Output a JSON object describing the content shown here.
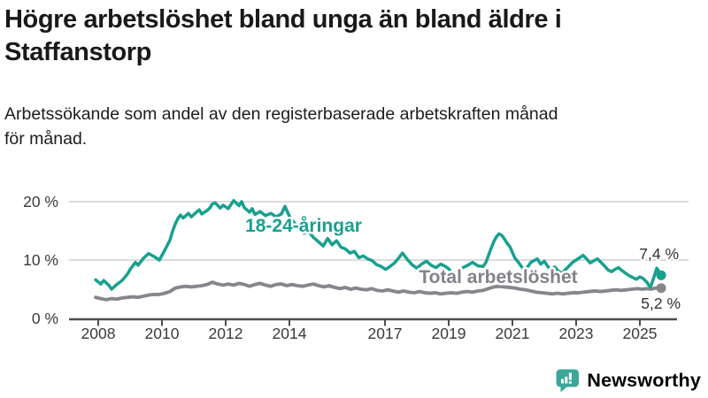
{
  "header": {
    "title": {
      "line1": "Högre arbetslöshet bland unga än bland äldre i",
      "line2": "Staffanstorp"
    },
    "subtitle": {
      "line1": "Arbetssökande som andel av den registerbaserade arbetskraften månad",
      "line2": "för månad."
    }
  },
  "chart_data": {
    "type": "line",
    "title": "Högre arbetslöshet bland unga än bland äldre i Staffanstorp",
    "subtitle": "Arbetssökande som andel av den registerbaserade arbetskraften månad för månad.",
    "grid": "horizontal",
    "legend_position": "inline-labels",
    "xlim": [
      2007.9,
      2025.9
    ],
    "ylim": [
      0,
      21
    ],
    "y_ticks": [
      {
        "value": 0,
        "label": "0 %"
      },
      {
        "value": 10,
        "label": "10 %"
      },
      {
        "value": 20,
        "label": "20 %"
      }
    ],
    "x_ticks": [
      {
        "value": 2008,
        "label": "2008"
      },
      {
        "value": 2010,
        "label": "2010"
      },
      {
        "value": 2012,
        "label": "2012"
      },
      {
        "value": 2014,
        "label": "2014"
      },
      {
        "value": 2017,
        "label": "2017"
      },
      {
        "value": 2019,
        "label": "2019"
      },
      {
        "value": 2021,
        "label": "2021"
      },
      {
        "value": 2023,
        "label": "2023"
      },
      {
        "value": 2025,
        "label": "2025"
      }
    ],
    "series": [
      {
        "name": "Total arbetslöshet",
        "color": "#87868c",
        "end_label": "5,2 %",
        "end_value": 5.2,
        "points": [
          [
            2007.92,
            3.6
          ],
          [
            2008.08,
            3.4
          ],
          [
            2008.25,
            3.2
          ],
          [
            2008.42,
            3.4
          ],
          [
            2008.58,
            3.3
          ],
          [
            2008.75,
            3.5
          ],
          [
            2008.92,
            3.6
          ],
          [
            2009.08,
            3.7
          ],
          [
            2009.25,
            3.6
          ],
          [
            2009.42,
            3.8
          ],
          [
            2009.58,
            4.0
          ],
          [
            2009.75,
            4.1
          ],
          [
            2009.92,
            4.1
          ],
          [
            2010.08,
            4.3
          ],
          [
            2010.25,
            4.6
          ],
          [
            2010.42,
            5.2
          ],
          [
            2010.58,
            5.4
          ],
          [
            2010.75,
            5.5
          ],
          [
            2010.92,
            5.4
          ],
          [
            2011.08,
            5.5
          ],
          [
            2011.25,
            5.6
          ],
          [
            2011.42,
            5.8
          ],
          [
            2011.58,
            6.2
          ],
          [
            2011.75,
            5.9
          ],
          [
            2011.92,
            5.7
          ],
          [
            2012.08,
            5.9
          ],
          [
            2012.25,
            5.7
          ],
          [
            2012.42,
            6.0
          ],
          [
            2012.58,
            5.8
          ],
          [
            2012.75,
            5.5
          ],
          [
            2012.92,
            5.8
          ],
          [
            2013.08,
            6.0
          ],
          [
            2013.25,
            5.7
          ],
          [
            2013.42,
            5.5
          ],
          [
            2013.58,
            5.8
          ],
          [
            2013.75,
            5.9
          ],
          [
            2013.92,
            5.6
          ],
          [
            2014.08,
            5.8
          ],
          [
            2014.25,
            5.6
          ],
          [
            2014.42,
            5.5
          ],
          [
            2014.58,
            5.7
          ],
          [
            2014.75,
            5.9
          ],
          [
            2014.92,
            5.6
          ],
          [
            2015.08,
            5.4
          ],
          [
            2015.25,
            5.6
          ],
          [
            2015.42,
            5.3
          ],
          [
            2015.58,
            5.1
          ],
          [
            2015.75,
            5.3
          ],
          [
            2015.92,
            5.0
          ],
          [
            2016.08,
            5.2
          ],
          [
            2016.25,
            5.0
          ],
          [
            2016.42,
            4.9
          ],
          [
            2016.58,
            5.1
          ],
          [
            2016.75,
            4.8
          ],
          [
            2016.92,
            4.7
          ],
          [
            2017.08,
            4.9
          ],
          [
            2017.25,
            4.7
          ],
          [
            2017.42,
            4.5
          ],
          [
            2017.58,
            4.7
          ],
          [
            2017.75,
            4.5
          ],
          [
            2017.92,
            4.4
          ],
          [
            2018.08,
            4.6
          ],
          [
            2018.25,
            4.4
          ],
          [
            2018.42,
            4.3
          ],
          [
            2018.58,
            4.4
          ],
          [
            2018.75,
            4.2
          ],
          [
            2018.92,
            4.3
          ],
          [
            2019.08,
            4.4
          ],
          [
            2019.25,
            4.3
          ],
          [
            2019.42,
            4.5
          ],
          [
            2019.58,
            4.6
          ],
          [
            2019.75,
            4.5
          ],
          [
            2019.92,
            4.7
          ],
          [
            2020.08,
            4.8
          ],
          [
            2020.25,
            5.1
          ],
          [
            2020.42,
            5.4
          ],
          [
            2020.58,
            5.5
          ],
          [
            2020.75,
            5.4
          ],
          [
            2020.92,
            5.3
          ],
          [
            2021.08,
            5.2
          ],
          [
            2021.25,
            5.0
          ],
          [
            2021.42,
            4.9
          ],
          [
            2021.58,
            4.7
          ],
          [
            2021.75,
            4.5
          ],
          [
            2021.92,
            4.4
          ],
          [
            2022.08,
            4.3
          ],
          [
            2022.25,
            4.2
          ],
          [
            2022.42,
            4.3
          ],
          [
            2022.58,
            4.2
          ],
          [
            2022.75,
            4.3
          ],
          [
            2022.92,
            4.4
          ],
          [
            2023.08,
            4.4
          ],
          [
            2023.25,
            4.5
          ],
          [
            2023.42,
            4.6
          ],
          [
            2023.58,
            4.7
          ],
          [
            2023.75,
            4.6
          ],
          [
            2023.92,
            4.7
          ],
          [
            2024.08,
            4.8
          ],
          [
            2024.25,
            4.9
          ],
          [
            2024.42,
            4.8
          ],
          [
            2024.58,
            4.9
          ],
          [
            2024.75,
            5.0
          ],
          [
            2024.92,
            5.1
          ],
          [
            2025.08,
            5.0
          ],
          [
            2025.22,
            5.1
          ],
          [
            2025.33,
            5.0
          ],
          [
            2025.5,
            5.2
          ],
          [
            2025.67,
            5.2
          ]
        ]
      },
      {
        "name": "18-24-åringar",
        "color": "#18a08f",
        "end_label": "7,4 %",
        "end_value": 7.4,
        "points": [
          [
            2007.92,
            6.6
          ],
          [
            2008.08,
            5.9
          ],
          [
            2008.17,
            6.5
          ],
          [
            2008.33,
            5.7
          ],
          [
            2008.42,
            5.0
          ],
          [
            2008.58,
            5.8
          ],
          [
            2008.75,
            6.5
          ],
          [
            2008.92,
            7.6
          ],
          [
            2009.0,
            8.4
          ],
          [
            2009.17,
            9.6
          ],
          [
            2009.25,
            9.1
          ],
          [
            2009.42,
            10.3
          ],
          [
            2009.58,
            11.1
          ],
          [
            2009.75,
            10.6
          ],
          [
            2009.92,
            10.0
          ],
          [
            2010.08,
            11.6
          ],
          [
            2010.25,
            13.4
          ],
          [
            2010.33,
            14.9
          ],
          [
            2010.42,
            16.2
          ],
          [
            2010.5,
            17.1
          ],
          [
            2010.58,
            17.7
          ],
          [
            2010.67,
            17.2
          ],
          [
            2010.83,
            18.0
          ],
          [
            2010.92,
            17.4
          ],
          [
            2011.08,
            18.2
          ],
          [
            2011.17,
            18.6
          ],
          [
            2011.25,
            17.9
          ],
          [
            2011.42,
            18.5
          ],
          [
            2011.5,
            18.9
          ],
          [
            2011.58,
            19.6
          ],
          [
            2011.67,
            19.8
          ],
          [
            2011.83,
            18.9
          ],
          [
            2011.92,
            19.4
          ],
          [
            2012.08,
            18.8
          ],
          [
            2012.17,
            19.5
          ],
          [
            2012.25,
            20.2
          ],
          [
            2012.42,
            19.3
          ],
          [
            2012.5,
            20.0
          ],
          [
            2012.58,
            19.0
          ],
          [
            2012.75,
            18.2
          ],
          [
            2012.83,
            18.8
          ],
          [
            2012.92,
            17.8
          ],
          [
            2013.08,
            18.3
          ],
          [
            2013.25,
            17.6
          ],
          [
            2013.42,
            18.0
          ],
          [
            2013.58,
            17.4
          ],
          [
            2013.75,
            17.9
          ],
          [
            2013.86,
            19.2
          ],
          [
            2014.0,
            17.5
          ],
          [
            2014.15,
            16.4
          ],
          [
            2014.3,
            15.4
          ],
          [
            2014.45,
            14.6
          ],
          [
            2014.6,
            14.9
          ],
          [
            2014.75,
            13.9
          ],
          [
            2014.9,
            13.2
          ],
          [
            2015.06,
            12.4
          ],
          [
            2015.2,
            13.7
          ],
          [
            2015.34,
            12.6
          ],
          [
            2015.48,
            13.3
          ],
          [
            2015.62,
            12.2
          ],
          [
            2015.76,
            11.9
          ],
          [
            2015.9,
            11.2
          ],
          [
            2016.04,
            11.5
          ],
          [
            2016.18,
            10.4
          ],
          [
            2016.32,
            10.7
          ],
          [
            2016.46,
            10.2
          ],
          [
            2016.6,
            9.9
          ],
          [
            2016.74,
            9.2
          ],
          [
            2016.88,
            8.9
          ],
          [
            2017.02,
            8.4
          ],
          [
            2017.16,
            8.9
          ],
          [
            2017.3,
            9.5
          ],
          [
            2017.44,
            10.4
          ],
          [
            2017.55,
            11.2
          ],
          [
            2017.7,
            10.1
          ],
          [
            2017.85,
            9.2
          ],
          [
            2018.0,
            8.6
          ],
          [
            2018.15,
            9.3
          ],
          [
            2018.3,
            9.8
          ],
          [
            2018.45,
            9.1
          ],
          [
            2018.6,
            8.7
          ],
          [
            2018.75,
            9.3
          ],
          [
            2018.9,
            8.9
          ],
          [
            2019.0,
            8.5
          ],
          [
            2019.14,
            7.4
          ],
          [
            2019.3,
            8.1
          ],
          [
            2019.45,
            8.7
          ],
          [
            2019.6,
            9.1
          ],
          [
            2019.75,
            9.6
          ],
          [
            2019.92,
            9.0
          ],
          [
            2020.08,
            8.9
          ],
          [
            2020.17,
            9.6
          ],
          [
            2020.25,
            10.8
          ],
          [
            2020.33,
            12.0
          ],
          [
            2020.42,
            13.2
          ],
          [
            2020.5,
            14.0
          ],
          [
            2020.58,
            14.5
          ],
          [
            2020.67,
            14.2
          ],
          [
            2020.75,
            13.6
          ],
          [
            2020.83,
            12.9
          ],
          [
            2020.92,
            12.3
          ],
          [
            2021.0,
            11.3
          ],
          [
            2021.08,
            10.3
          ],
          [
            2021.19,
            9.6
          ],
          [
            2021.31,
            8.7
          ],
          [
            2021.39,
            8.1
          ],
          [
            2021.5,
            9.0
          ],
          [
            2021.58,
            9.6
          ],
          [
            2021.78,
            10.2
          ],
          [
            2021.89,
            9.3
          ],
          [
            2022.0,
            9.8
          ],
          [
            2022.11,
            8.9
          ],
          [
            2022.22,
            8.3
          ],
          [
            2022.33,
            8.8
          ],
          [
            2022.44,
            8.1
          ],
          [
            2022.56,
            7.7
          ],
          [
            2022.67,
            8.4
          ],
          [
            2022.78,
            9.0
          ],
          [
            2022.89,
            9.6
          ],
          [
            2023.0,
            10.0
          ],
          [
            2023.11,
            10.4
          ],
          [
            2023.22,
            10.8
          ],
          [
            2023.33,
            10.2
          ],
          [
            2023.44,
            9.5
          ],
          [
            2023.56,
            9.9
          ],
          [
            2023.67,
            10.2
          ],
          [
            2023.78,
            9.6
          ],
          [
            2023.89,
            9.0
          ],
          [
            2024.0,
            8.3
          ],
          [
            2024.11,
            8.0
          ],
          [
            2024.22,
            8.4
          ],
          [
            2024.33,
            8.7
          ],
          [
            2024.44,
            8.2
          ],
          [
            2024.56,
            7.7
          ],
          [
            2024.67,
            7.3
          ],
          [
            2024.78,
            7.0
          ],
          [
            2024.89,
            6.7
          ],
          [
            2025.0,
            7.1
          ],
          [
            2025.11,
            6.8
          ],
          [
            2025.22,
            6.2
          ],
          [
            2025.33,
            5.3
          ],
          [
            2025.44,
            7.0
          ],
          [
            2025.53,
            8.6
          ],
          [
            2025.67,
            7.4
          ]
        ]
      }
    ]
  },
  "branding": {
    "name": "Newsworthy",
    "color": "#3aa096"
  }
}
